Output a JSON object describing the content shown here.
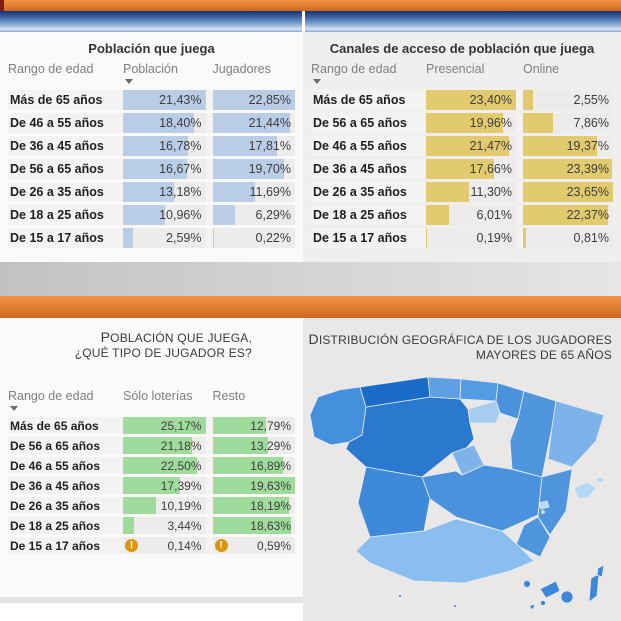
{
  "theme": {
    "orange_light": "#F09345",
    "orange_mid": "#E27E2F",
    "orange_dark": "#CE6420",
    "maroon": "#7E1D12",
    "blue1": "#16336E",
    "blue2": "#3A62A4",
    "blue3": "#7FA2CF",
    "blue4": "#D7E2F2",
    "gray_band_l": "#C2C2C0",
    "gray_band_r": "#E7E6E4",
    "panel_white": "#FAFAF9",
    "panel_gray": "#F0EFED",
    "panel_map": "#E9E8E6",
    "row_bg": "#F4F3F1",
    "cell_bg": "#EDECEA",
    "warn": "#DB9712",
    "text_head": "#7F7F7F",
    "text_val": "#3D3D3D"
  },
  "icons": {
    "sort_descending": "triangle-down",
    "warning": "!"
  },
  "panels": {
    "poblacion": {
      "title": "Población que juega",
      "columns": [
        "Rango de edad",
        "Población",
        "Jugadores"
      ],
      "sorted_by": "Población",
      "bar_color": "#B9CDE7",
      "rows": [
        {
          "label": "Más de 65 años",
          "values": [
            "21,43%",
            "22,85%"
          ]
        },
        {
          "label": "De 46 a 55 años",
          "values": [
            "18,40%",
            "21,44%"
          ]
        },
        {
          "label": "De 36 a 45 años",
          "values": [
            "16,78%",
            "17,81%"
          ]
        },
        {
          "label": "De 56 a 65 años",
          "values": [
            "16,67%",
            "19,70%"
          ]
        },
        {
          "label": "De 26 a 35 años",
          "values": [
            "13,18%",
            "11,69%"
          ]
        },
        {
          "label": "De 18 a 25 años",
          "values": [
            "10,96%",
            "6,29%"
          ]
        },
        {
          "label": "De 15 a 17 años",
          "values": [
            "2,59%",
            "0,22%"
          ]
        }
      ]
    },
    "canales": {
      "title": "Canales de acceso de población que juega",
      "columns": [
        "Rango de edad",
        "Presencial",
        "Online"
      ],
      "sorted_by": "Rango de edad",
      "bar_color": "#E2CB6E",
      "rows": [
        {
          "label": "Más de 65 años",
          "values": [
            "23,40%",
            "2,55%"
          ]
        },
        {
          "label": "De 56 a 65 años",
          "values": [
            "19,96%",
            "7,86%"
          ]
        },
        {
          "label": "De 46 a 55 años",
          "values": [
            "21,47%",
            "19,37%"
          ]
        },
        {
          "label": "De 36 a 45 años",
          "values": [
            "17,66%",
            "23,39%"
          ]
        },
        {
          "label": "De 26 a 35 años",
          "values": [
            "11,30%",
            "23,65%"
          ]
        },
        {
          "label": "De 18 a 25 años",
          "values": [
            "6,01%",
            "22,37%"
          ]
        },
        {
          "label": "De 15 a 17 años",
          "values": [
            "0,19%",
            "0,81%"
          ]
        }
      ]
    },
    "tipo": {
      "title_line1": "POBLACIÓN QUE JUEGA,",
      "title_line2": "¿QUÉ TIPO DE JUGADOR ES?",
      "columns": [
        "Rango de edad",
        "Sólo loterías",
        "Resto"
      ],
      "sorted_by": "Rango de edad",
      "bar_color": "#9FDB9B",
      "rows": [
        {
          "label": "Más de 65 años",
          "values": [
            "25,17%",
            "12,79%"
          ]
        },
        {
          "label": "De 56 a 65 años",
          "values": [
            "21,18%",
            "13,29%"
          ]
        },
        {
          "label": "De 46 a 55 años",
          "values": [
            "22,50%",
            "16,89%"
          ]
        },
        {
          "label": "De 36 a 45 años",
          "values": [
            "17,39%",
            "19,63%"
          ]
        },
        {
          "label": "De 26 a 35 años",
          "values": [
            "10,19%",
            "18,19%"
          ]
        },
        {
          "label": "De 18 a 25 años",
          "values": [
            "3,44%",
            "18,63%"
          ]
        },
        {
          "label": "De 15 a 17 años",
          "values": [
            "0,14%",
            "0,59%"
          ],
          "warn": true
        }
      ]
    }
  },
  "map": {
    "title_line1": "DISTRIBUCIÓN GEOGRÁFICA DE LOS JUGADORES",
    "title_line2": "MAYORES DE 65 AÑOS",
    "regions": {
      "galicia": "#4590DC",
      "asturias": "#1B6CC8",
      "cantabria": "#5FA0E5",
      "pais_vasco": "#539BE2",
      "navarra": "#4A92DC",
      "la_rioja": "#A6CCF0",
      "aragon": "#4E95DE",
      "cataluna": "#7DB3EA",
      "castilla_leon": "#2B79CF",
      "madrid": "#7FB2E8",
      "castilla_la_mancha": "#4A92DC",
      "valencia": "#4E95DE",
      "murcia": "#4E95DE",
      "extremadura": "#3F8AD8",
      "andalucia": "#8ABEEE",
      "baleares": "#B5D9F5",
      "canarias": "#3C87D9",
      "ceuta_melilla": "#4E95DE"
    }
  }
}
